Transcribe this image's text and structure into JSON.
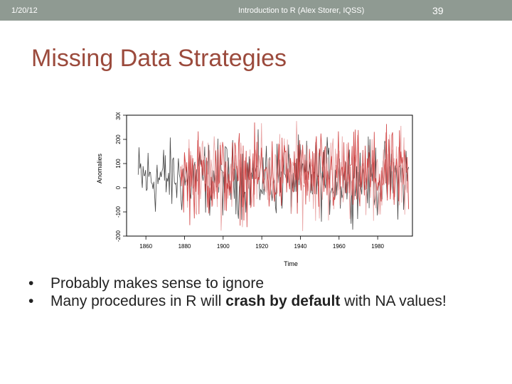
{
  "header": {
    "date": "1/20/12",
    "footer": "Introduction to R (Alex Storer, IQSS)",
    "slide_number": "39"
  },
  "title": "Missing Data Strategies",
  "bullets": [
    {
      "pre": "Probably makes sense to ignore",
      "bold": "",
      "post": ""
    },
    {
      "pre": "Many procedures in R will ",
      "bold": "crash by default",
      "post": " with NA values!"
    }
  ],
  "colors": {
    "header_bg": "#8f9a92",
    "title": "#9b4a3c",
    "series_original": "#444444",
    "series_imputed": "#cc3333"
  },
  "chart_data": {
    "type": "line",
    "xlabel": "Time",
    "ylabel": "Anomalies",
    "xlim": [
      1850,
      1998
    ],
    "ylim": [
      -200,
      300
    ],
    "x_ticks": [
      "1860",
      "1880",
      "1900",
      "1920",
      "1940",
      "1960",
      "1980"
    ],
    "y_ticks": [
      "-200",
      "-100",
      "0",
      "100",
      "200",
      "300"
    ],
    "grid": false,
    "series": [
      {
        "name": "",
        "color": "#444444",
        "note": "monthly anomalies, approx. -150 to 300"
      },
      {
        "name": "",
        "color": "#cc3333",
        "note": "overlay from ~1878 onward, approx. -200 to 300"
      }
    ]
  }
}
